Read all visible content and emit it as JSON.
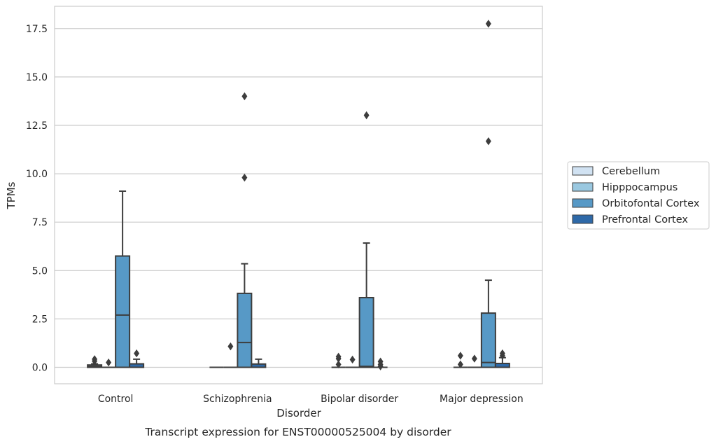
{
  "chart_data": {
    "type": "box",
    "title": "",
    "caption": "Transcript expression for ENST00000525004 by disorder",
    "xlabel": "Disorder",
    "ylabel": "TPMs",
    "ylim": [
      -0.85,
      18.65
    ],
    "yticks": [
      "0.0",
      "2.5",
      "5.0",
      "7.5",
      "10.0",
      "12.5",
      "15.0",
      "17.5"
    ],
    "categories": [
      "Control",
      "Schizophrenia",
      "Bipolar disorder",
      "Major depression"
    ],
    "grid": "horizontal",
    "legend_position": "right",
    "series": [
      {
        "name": "Cerebellum",
        "color": "#d1e2f2",
        "boxes": [
          {
            "q1": 0.0,
            "median": 0.05,
            "q3": 0.12,
            "whisker_low": 0.0,
            "whisker_high": 0.18,
            "outliers": [
              0.32,
              0.42
            ]
          },
          {
            "q1": 0.0,
            "median": 0.0,
            "q3": 0.0,
            "whisker_low": 0.0,
            "whisker_high": 0.0,
            "outliers": []
          },
          {
            "q1": 0.0,
            "median": 0.0,
            "q3": 0.0,
            "whisker_low": 0.0,
            "whisker_high": 0.0,
            "outliers": [
              0.15,
              0.45,
              0.55
            ]
          },
          {
            "q1": 0.0,
            "median": 0.0,
            "q3": 0.0,
            "whisker_low": 0.0,
            "whisker_high": 0.0,
            "outliers": [
              0.15,
              0.6
            ]
          }
        ]
      },
      {
        "name": "Hipppocampus",
        "color": "#9ac8e0",
        "boxes": [
          {
            "q1": 0.0,
            "median": 0.0,
            "q3": 0.0,
            "whisker_low": 0.0,
            "whisker_high": 0.0,
            "outliers": [
              0.25
            ]
          },
          {
            "q1": 0.0,
            "median": 0.0,
            "q3": 0.0,
            "whisker_low": 0.0,
            "whisker_high": 0.0,
            "outliers": [
              1.08
            ]
          },
          {
            "q1": 0.0,
            "median": 0.0,
            "q3": 0.0,
            "whisker_low": 0.0,
            "whisker_high": 0.0,
            "outliers": [
              0.4
            ]
          },
          {
            "q1": 0.0,
            "median": 0.0,
            "q3": 0.0,
            "whisker_low": 0.0,
            "whisker_high": 0.0,
            "outliers": [
              0.45
            ]
          }
        ]
      },
      {
        "name": "Orbitofontal Cortex",
        "color": "#5799c6",
        "boxes": [
          {
            "q1": 0.0,
            "median": 2.7,
            "q3": 5.75,
            "whisker_low": 0.0,
            "whisker_high": 9.1,
            "outliers": []
          },
          {
            "q1": 0.0,
            "median": 1.28,
            "q3": 3.82,
            "whisker_low": 0.0,
            "whisker_high": 5.35,
            "outliers": [
              9.8,
              14.0
            ]
          },
          {
            "q1": 0.0,
            "median": 0.05,
            "q3": 3.6,
            "whisker_low": 0.0,
            "whisker_high": 6.42,
            "outliers": [
              13.02
            ]
          },
          {
            "q1": 0.0,
            "median": 0.25,
            "q3": 2.8,
            "whisker_low": 0.0,
            "whisker_high": 4.5,
            "outliers": [
              11.68,
              17.75
            ]
          }
        ]
      },
      {
        "name": "Prefrontal Cortex",
        "color": "#2e69a8",
        "boxes": [
          {
            "q1": 0.0,
            "median": 0.0,
            "q3": 0.18,
            "whisker_low": 0.0,
            "whisker_high": 0.42,
            "outliers": [
              0.72
            ]
          },
          {
            "q1": 0.0,
            "median": 0.0,
            "q3": 0.17,
            "whisker_low": 0.0,
            "whisker_high": 0.42,
            "outliers": []
          },
          {
            "q1": 0.0,
            "median": 0.0,
            "q3": 0.0,
            "whisker_low": 0.0,
            "whisker_high": 0.0,
            "outliers": [
              0.05,
              0.15,
              0.3
            ]
          },
          {
            "q1": 0.0,
            "median": 0.0,
            "q3": 0.2,
            "whisker_low": 0.0,
            "whisker_high": 0.5,
            "outliers": [
              0.6,
              0.72
            ]
          }
        ]
      }
    ]
  }
}
